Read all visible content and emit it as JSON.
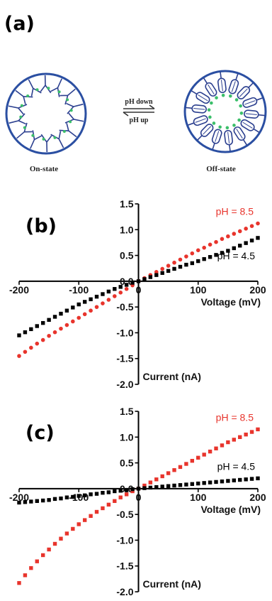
{
  "panels": {
    "a": "(a)",
    "b": "(b)",
    "c": "(c)"
  },
  "schematic": {
    "left_caption": "On-state",
    "right_caption": "Off-state",
    "arrow_top": "pH down",
    "arrow_bottom": "pH up"
  },
  "chart_data": [
    {
      "type": "scatter",
      "panel": "(b)",
      "xlabel": "Voltage (mV)",
      "ylabel": "Current (nA)",
      "xlim": [
        -200,
        200
      ],
      "ylim": [
        -2.0,
        1.5
      ],
      "xticks": [
        "-200",
        "-100",
        "0",
        "100",
        "200"
      ],
      "yticks": [
        "1.5",
        "1.0",
        "0.5",
        "0.0",
        "-0.5",
        "-1.0",
        "-1.5",
        "-2.0"
      ],
      "grid": false,
      "series": [
        {
          "name": "pH = 8.5",
          "marker": "circle",
          "color": "#e8342c",
          "x": [
            -200,
            -190,
            -180,
            -170,
            -160,
            -150,
            -140,
            -130,
            -120,
            -110,
            -100,
            -90,
            -80,
            -70,
            -60,
            -50,
            -40,
            -30,
            -20,
            -10,
            0,
            10,
            20,
            30,
            40,
            50,
            60,
            70,
            80,
            90,
            100,
            110,
            120,
            130,
            140,
            150,
            160,
            170,
            180,
            190,
            200
          ],
          "y": [
            -1.45,
            -1.37,
            -1.29,
            -1.21,
            -1.14,
            -1.06,
            -0.99,
            -0.92,
            -0.85,
            -0.78,
            -0.71,
            -0.64,
            -0.57,
            -0.5,
            -0.43,
            -0.36,
            -0.29,
            -0.22,
            -0.15,
            -0.08,
            0.0,
            0.06,
            0.12,
            0.18,
            0.24,
            0.3,
            0.36,
            0.42,
            0.48,
            0.54,
            0.6,
            0.65,
            0.71,
            0.76,
            0.82,
            0.87,
            0.92,
            0.97,
            1.02,
            1.07,
            1.12
          ]
        },
        {
          "name": "pH = 4.5",
          "marker": "square",
          "color": "#000000",
          "x": [
            -200,
            -190,
            -180,
            -170,
            -160,
            -150,
            -140,
            -130,
            -120,
            -110,
            -100,
            -90,
            -80,
            -70,
            -60,
            -50,
            -40,
            -30,
            -20,
            -10,
            0,
            10,
            20,
            30,
            40,
            50,
            60,
            70,
            80,
            90,
            100,
            110,
            120,
            130,
            140,
            150,
            160,
            170,
            180,
            190,
            200
          ],
          "y": [
            -1.05,
            -0.99,
            -0.93,
            -0.87,
            -0.81,
            -0.75,
            -0.69,
            -0.63,
            -0.57,
            -0.51,
            -0.45,
            -0.4,
            -0.35,
            -0.3,
            -0.25,
            -0.2,
            -0.15,
            -0.11,
            -0.07,
            -0.03,
            0.0,
            0.04,
            0.08,
            0.12,
            0.16,
            0.2,
            0.24,
            0.28,
            0.32,
            0.35,
            0.39,
            0.43,
            0.47,
            0.51,
            0.55,
            0.59,
            0.64,
            0.69,
            0.74,
            0.79,
            0.84
          ]
        }
      ]
    },
    {
      "type": "scatter",
      "panel": "(c)",
      "xlabel": "Voltage (mV)",
      "ylabel": "Current (nA)",
      "xlim": [
        -200,
        200
      ],
      "ylim": [
        -2.0,
        1.5
      ],
      "xticks": [
        "-200",
        "-100",
        "0",
        "100",
        "200"
      ],
      "yticks": [
        "1.5",
        "1.0",
        "0.5",
        "0.0",
        "-0.5",
        "-1.0",
        "-1.5",
        "-2.0"
      ],
      "grid": false,
      "series": [
        {
          "name": "pH = 8.5",
          "marker": "square",
          "color": "#e8342c",
          "x": [
            -200,
            -190,
            -180,
            -170,
            -160,
            -150,
            -140,
            -130,
            -120,
            -110,
            -100,
            -90,
            -80,
            -70,
            -60,
            -50,
            -40,
            -30,
            -20,
            -10,
            0,
            10,
            20,
            30,
            40,
            50,
            60,
            70,
            80,
            90,
            100,
            110,
            120,
            130,
            140,
            150,
            160,
            170,
            180,
            190,
            200
          ],
          "y": [
            -1.83,
            -1.68,
            -1.54,
            -1.41,
            -1.29,
            -1.18,
            -1.07,
            -0.97,
            -0.87,
            -0.78,
            -0.69,
            -0.61,
            -0.53,
            -0.45,
            -0.38,
            -0.31,
            -0.24,
            -0.17,
            -0.11,
            -0.05,
            0.0,
            0.06,
            0.12,
            0.18,
            0.24,
            0.3,
            0.36,
            0.42,
            0.48,
            0.54,
            0.6,
            0.66,
            0.72,
            0.78,
            0.84,
            0.9,
            0.95,
            1.0,
            1.05,
            1.1,
            1.15
          ]
        },
        {
          "name": "pH = 4.5",
          "marker": "square",
          "color": "#000000",
          "x": [
            -200,
            -190,
            -180,
            -170,
            -160,
            -150,
            -140,
            -130,
            -120,
            -110,
            -100,
            -90,
            -80,
            -70,
            -60,
            -50,
            -40,
            -30,
            -20,
            -10,
            0,
            10,
            20,
            30,
            40,
            50,
            60,
            70,
            80,
            90,
            100,
            110,
            120,
            130,
            140,
            150,
            160,
            170,
            180,
            190,
            200
          ],
          "y": [
            -0.27,
            -0.26,
            -0.25,
            -0.24,
            -0.23,
            -0.22,
            -0.2,
            -0.19,
            -0.17,
            -0.16,
            -0.14,
            -0.13,
            -0.11,
            -0.1,
            -0.08,
            -0.07,
            -0.05,
            -0.04,
            -0.03,
            -0.01,
            0.0,
            0.01,
            0.02,
            0.03,
            0.04,
            0.05,
            0.06,
            0.07,
            0.08,
            0.09,
            0.1,
            0.11,
            0.12,
            0.13,
            0.14,
            0.15,
            0.16,
            0.17,
            0.18,
            0.19,
            0.2
          ]
        }
      ]
    }
  ]
}
